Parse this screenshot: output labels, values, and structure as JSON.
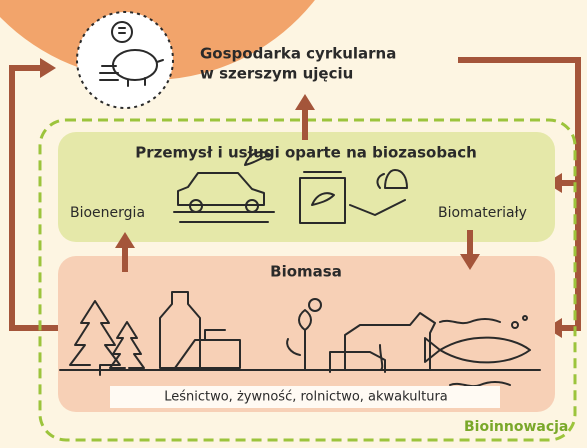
{
  "circular": {
    "line1": "Gospodarka cyrkularna",
    "line2": "w szerszym ujęciu"
  },
  "industry": {
    "title": "Przemysł i usługi oparte na biozasobach",
    "left": "Bioenergia",
    "right": "Biomateriały"
  },
  "biomass": {
    "title": "Biomasa",
    "caption": "Leśnictwo, żywność, rolnictwo, akwakultura"
  },
  "frame_label": "Bioinnowacja"
}
